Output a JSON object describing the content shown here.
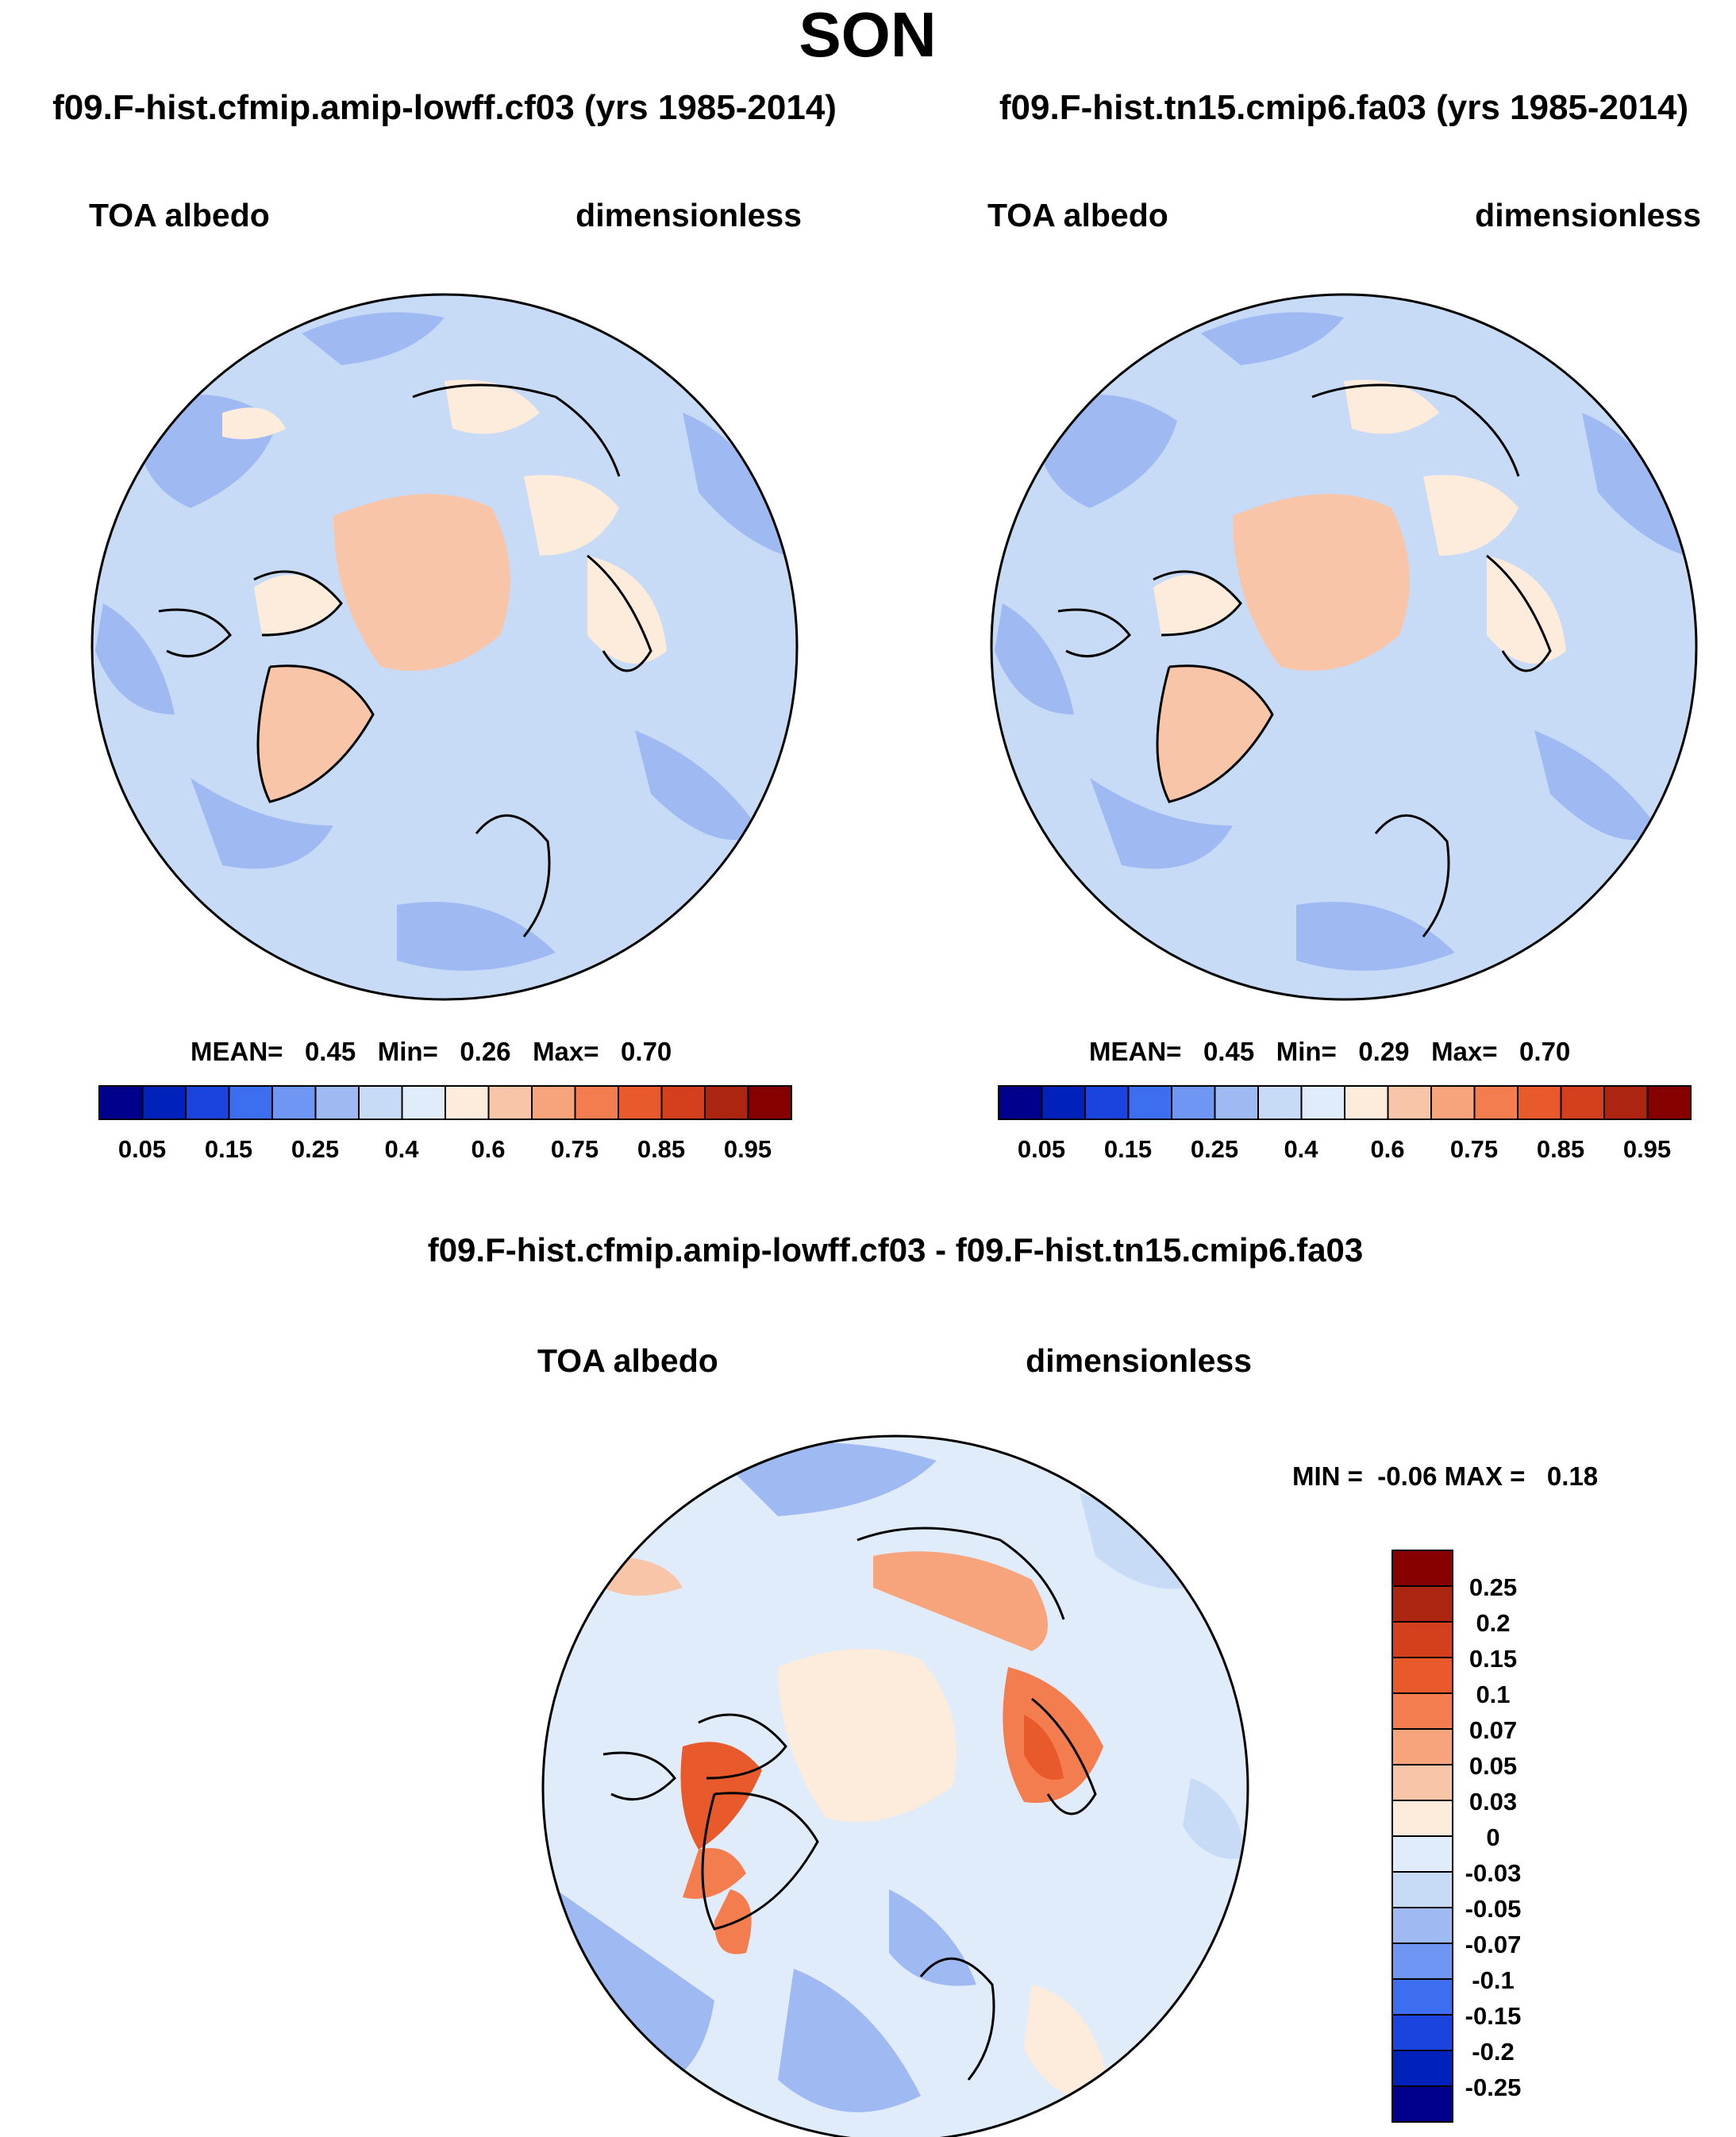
{
  "title": "SON",
  "colors": {
    "colorbar_abs": [
      "#00008c",
      "#0022bb",
      "#1a44dd",
      "#3d6ef0",
      "#6f96f2",
      "#9fbaf3",
      "#c8dbf6",
      "#e1ecfa",
      "#fdebdb",
      "#f9c5a8",
      "#f7a47c",
      "#f47d4f",
      "#e85a2b",
      "#d4401d",
      "#ac2510",
      "#870000"
    ],
    "colorbar_diff": [
      "#870000",
      "#ac2510",
      "#d4401d",
      "#e85a2b",
      "#f47d4f",
      "#f7a47c",
      "#f9c5a8",
      "#fdebdb",
      "#e1ecfa",
      "#c8dbf6",
      "#9fbaf3",
      "#6f96f2",
      "#3d6ef0",
      "#1a44dd",
      "#0022bb",
      "#00008c"
    ],
    "ocean_abs": "#c8dbf6",
    "land_abs": "#fdebdb",
    "coastline": "#000000"
  },
  "panels": [
    {
      "case": "f09.F-hist.cfmip.amip-lowff.cf03 (yrs 1985-2014)",
      "variable": "TOA albedo",
      "units": "dimensionless",
      "stats": {
        "mean_label": "MEAN=",
        "mean": "0.45",
        "min_label": "Min=",
        "min": "0.26",
        "max_label": "Max=",
        "max": "0.70"
      },
      "ticks": [
        "0.05",
        "0.15",
        "0.25",
        "0.4",
        "0.6",
        "0.75",
        "0.85",
        "0.95"
      ]
    },
    {
      "case": "f09.F-hist.tn15.cmip6.fa03 (yrs 1985-2014)",
      "variable": "TOA albedo",
      "units": "dimensionless",
      "stats": {
        "mean_label": "MEAN=",
        "mean": "0.45",
        "min_label": "Min=",
        "min": "0.29",
        "max_label": "Max=",
        "max": "0.70"
      },
      "ticks": [
        "0.05",
        "0.15",
        "0.25",
        "0.4",
        "0.6",
        "0.75",
        "0.85",
        "0.95"
      ]
    }
  ],
  "diff": {
    "case": "f09.F-hist.cfmip.amip-lowff.cf03 - f09.F-hist.tn15.cmip6.fa03",
    "variable": "TOA albedo",
    "units": "dimensionless",
    "range_text": "MIN =  -0.06 MAX =   0.18",
    "ticks": [
      "0.25",
      "0.2",
      "0.15",
      "0.1",
      "0.07",
      "0.05",
      "0.03",
      "0",
      "-0.03",
      "-0.05",
      "-0.07",
      "-0.1",
      "-0.15",
      "-0.2",
      "-0.25"
    ]
  }
}
